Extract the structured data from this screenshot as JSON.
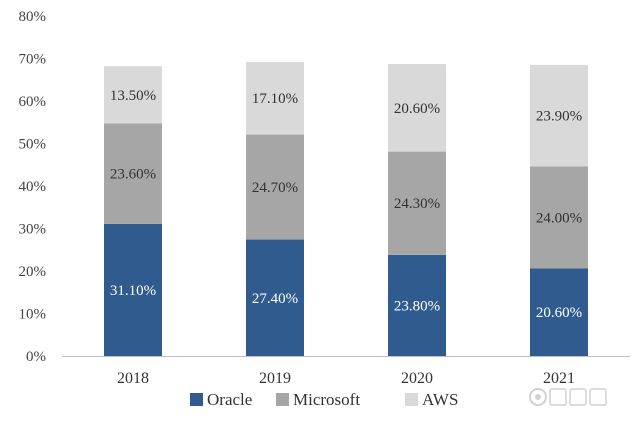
{
  "chart_data": {
    "type": "bar",
    "stacked": true,
    "categories": [
      "2018",
      "2019",
      "2020",
      "2021"
    ],
    "series": [
      {
        "name": "Oracle",
        "values": [
          31.1,
          27.4,
          23.8,
          20.6
        ],
        "labels": [
          "31.10%",
          "27.40%",
          "23.80%",
          "20.60%"
        ],
        "color": "#2f5b8f",
        "label_color": "#ffffff"
      },
      {
        "name": "Microsoft",
        "values": [
          23.6,
          24.7,
          24.3,
          24.0
        ],
        "labels": [
          "23.60%",
          "24.70%",
          "24.30%",
          "24.00%"
        ],
        "color": "#a6a6a6",
        "label_color": "#333333"
      },
      {
        "name": "AWS",
        "values": [
          13.5,
          17.1,
          20.6,
          23.9
        ],
        "labels": [
          "13.50%",
          "17.10%",
          "20.60%",
          "23.90%"
        ],
        "color": "#d9d9d9",
        "label_color": "#333333"
      }
    ],
    "ylim": [
      0,
      80
    ],
    "yticks": [
      {
        "value": 0,
        "label": "0%"
      },
      {
        "value": 10,
        "label": "10%"
      },
      {
        "value": 20,
        "label": "20%"
      },
      {
        "value": 30,
        "label": "30%"
      },
      {
        "value": 40,
        "label": "40%"
      },
      {
        "value": 50,
        "label": "50%"
      },
      {
        "value": 60,
        "label": "60%"
      },
      {
        "value": 70,
        "label": "70%"
      },
      {
        "value": 80,
        "label": "80%"
      }
    ],
    "grid": false,
    "legend": "bottom",
    "title": "",
    "xlabel": "",
    "ylabel": ""
  }
}
